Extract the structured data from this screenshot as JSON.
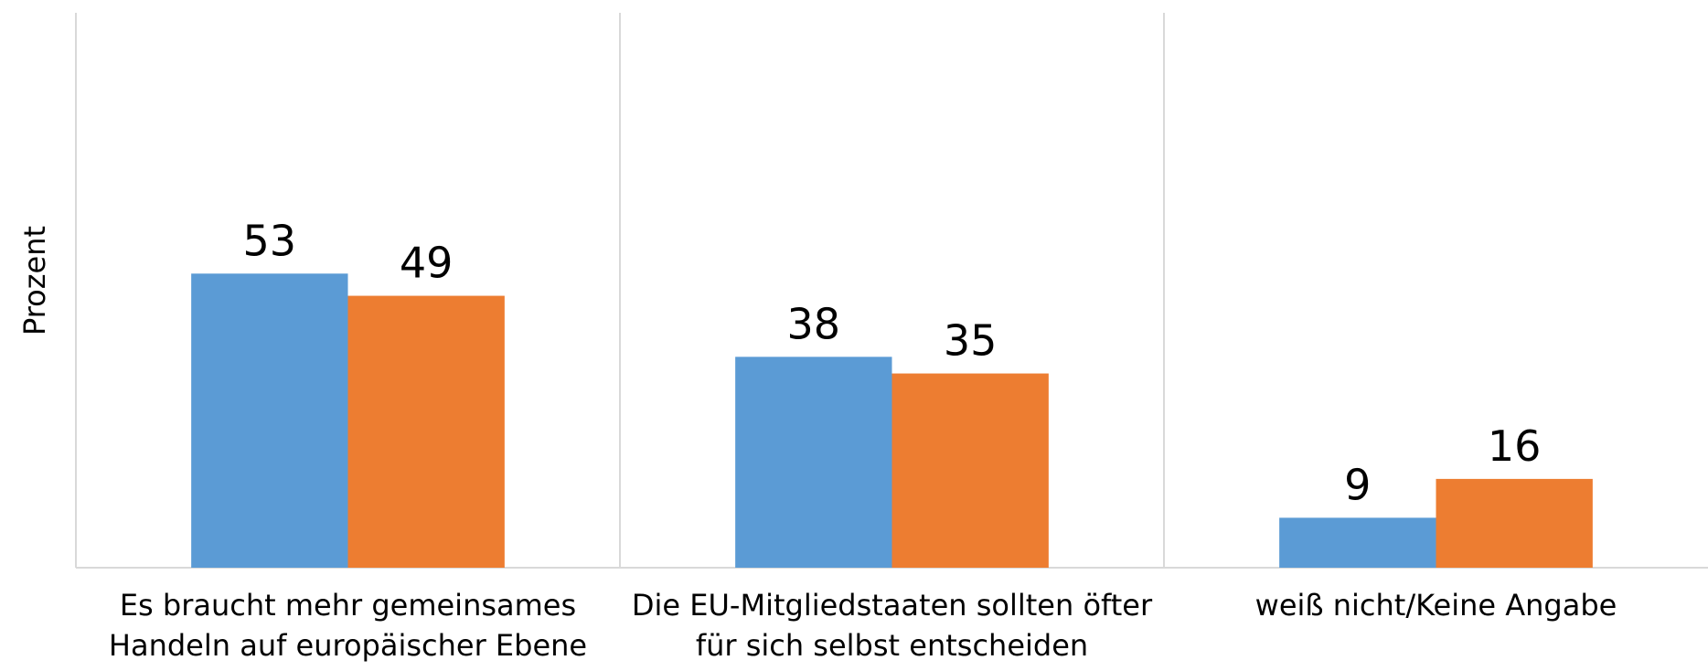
{
  "chart_data": {
    "type": "bar",
    "y_label": "Prozent",
    "categories": [
      [
        "Es braucht mehr gemeinsames",
        "Handeln auf europäischer Ebene"
      ],
      [
        "Die EU-Mitgliedstaaten sollten öfter",
        "für sich selbst entscheiden"
      ],
      [
        "weiß nicht/Keine Angabe"
      ]
    ],
    "series": [
      {
        "color": "#5b9bd5",
        "values": [
          53,
          38,
          9
        ]
      },
      {
        "color": "#ed7d31",
        "values": [
          49,
          35,
          16
        ]
      }
    ],
    "ylim": [
      0,
      100
    ]
  }
}
